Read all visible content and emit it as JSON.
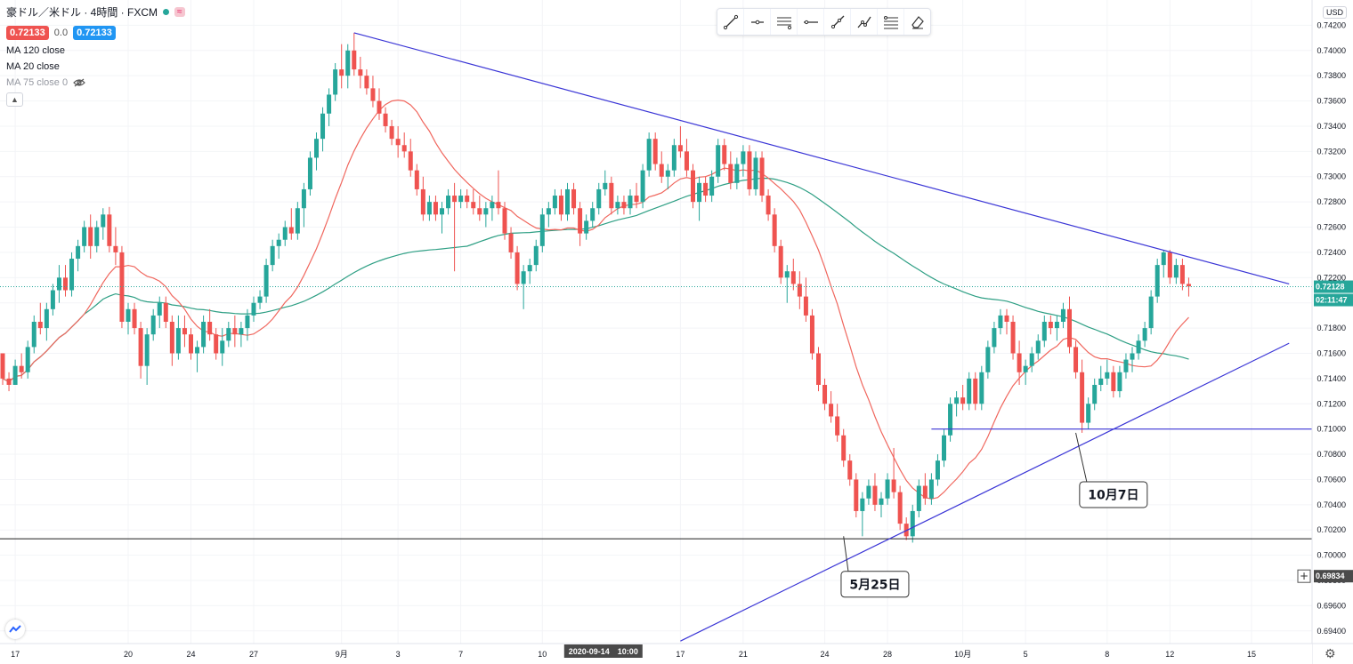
{
  "header": {
    "symbol_title": "豪ドル／米ドル · 4時間 · FXCM",
    "sell_price": "0.72133",
    "spread": "0.0",
    "buy_price": "0.72133",
    "indicators": [
      "MA 120 close",
      "MA 20 close",
      "MA 75 close 0"
    ],
    "collapse_icon": "chevron-up-icon"
  },
  "toolbar_icons": [
    "trend-line-icon",
    "horizontal-ray-icon",
    "parallel-channel-icon",
    "horizontal-line-icon",
    "ray-icon",
    "path-icon",
    "fib-retracement-icon",
    "eraser-icon"
  ],
  "currency_button": "USD",
  "settings_icon": "gear-icon",
  "colors": {
    "up": "#26a69a",
    "down": "#ef5350",
    "ma_fast": "#f0675e",
    "ma_slow": "#2e9f84",
    "trendline": "#3a35d6",
    "support_line": "#1e1e1e"
  },
  "chart_data": {
    "type": "candlestick",
    "symbol": "AUD/USD",
    "timeframe": "4H",
    "ylim": [
      0.693,
      0.744
    ],
    "y_ticks": [
      "0.74200",
      "0.74000",
      "0.73800",
      "0.73600",
      "0.73400",
      "0.73200",
      "0.73000",
      "0.72800",
      "0.72600",
      "0.72400",
      "0.72200",
      "0.72000",
      "0.71800",
      "0.71600",
      "0.71400",
      "0.71200",
      "0.71000",
      "0.70800",
      "0.70600",
      "0.70400",
      "0.70200",
      "0.70000",
      "0.69800",
      "0.69600",
      "0.69400"
    ],
    "x_ticks": [
      {
        "label": "17",
        "i": 2
      },
      {
        "label": "20",
        "i": 20
      },
      {
        "label": "24",
        "i": 30
      },
      {
        "label": "27",
        "i": 40
      },
      {
        "label": "9月",
        "i": 54
      },
      {
        "label": "3",
        "i": 63
      },
      {
        "label": "7",
        "i": 73
      },
      {
        "label": "10",
        "i": 86
      },
      {
        "label": "17",
        "i": 108
      },
      {
        "label": "21",
        "i": 118
      },
      {
        "label": "24",
        "i": 131
      },
      {
        "label": "28",
        "i": 141
      },
      {
        "label": "10月",
        "i": 153
      },
      {
        "label": "5",
        "i": 163
      },
      {
        "label": "8",
        "i": 176
      },
      {
        "label": "12",
        "i": 186
      },
      {
        "label": "15",
        "i": 199
      }
    ],
    "crosshair_x_label": "2020-09-14　10:00",
    "crosshair_i": 96,
    "last_price_label": "0.72128",
    "countdown_label": "02:11:47",
    "cursor_price_label": "0.69834",
    "support_level": 0.7013,
    "horizontal_level": {
      "price": 0.71,
      "from_i": 148
    },
    "trendlines": [
      {
        "name": "resistance",
        "from": [
          56,
          0.7414
        ],
        "to": [
          205,
          0.7215
        ]
      },
      {
        "name": "support",
        "from": [
          108,
          0.6932
        ],
        "to": [
          205,
          0.7168
        ]
      }
    ],
    "annotations": [
      {
        "text": "5月25日",
        "target_i": 134,
        "target_price": 0.7015,
        "label_i": 139,
        "label_price": 0.6977
      },
      {
        "text": "10月7日",
        "target_i": 171,
        "target_price": 0.7097,
        "label_i": 177,
        "label_price": 0.7048
      }
    ],
    "ohlc": [
      [
        0.716,
        0.716,
        0.7135,
        0.714
      ],
      [
        0.714,
        0.7145,
        0.713,
        0.7135
      ],
      [
        0.7135,
        0.7155,
        0.7135,
        0.715
      ],
      [
        0.715,
        0.716,
        0.714,
        0.7145
      ],
      [
        0.7145,
        0.717,
        0.714,
        0.7165
      ],
      [
        0.7165,
        0.719,
        0.716,
        0.7185
      ],
      [
        0.7185,
        0.72,
        0.7175,
        0.718
      ],
      [
        0.718,
        0.72,
        0.717,
        0.7195
      ],
      [
        0.7195,
        0.7215,
        0.719,
        0.721
      ],
      [
        0.721,
        0.723,
        0.72,
        0.722
      ],
      [
        0.722,
        0.723,
        0.7205,
        0.721
      ],
      [
        0.721,
        0.724,
        0.7205,
        0.7235
      ],
      [
        0.7235,
        0.725,
        0.7225,
        0.7245
      ],
      [
        0.7245,
        0.7265,
        0.724,
        0.726
      ],
      [
        0.726,
        0.727,
        0.7235,
        0.7245
      ],
      [
        0.7245,
        0.7265,
        0.724,
        0.726
      ],
      [
        0.726,
        0.7275,
        0.725,
        0.727
      ],
      [
        0.727,
        0.7276,
        0.724,
        0.7245
      ],
      [
        0.7245,
        0.726,
        0.723,
        0.724
      ],
      [
        0.724,
        0.7245,
        0.718,
        0.7185
      ],
      [
        0.7185,
        0.72,
        0.7175,
        0.7195
      ],
      [
        0.7195,
        0.72,
        0.7175,
        0.718
      ],
      [
        0.718,
        0.7185,
        0.714,
        0.715
      ],
      [
        0.715,
        0.718,
        0.7135,
        0.7175
      ],
      [
        0.7175,
        0.7195,
        0.717,
        0.719
      ],
      [
        0.719,
        0.7205,
        0.718,
        0.72
      ],
      [
        0.72,
        0.7205,
        0.718,
        0.7185
      ],
      [
        0.7185,
        0.719,
        0.715,
        0.716
      ],
      [
        0.716,
        0.719,
        0.7155,
        0.718
      ],
      [
        0.718,
        0.719,
        0.7165,
        0.7175
      ],
      [
        0.7175,
        0.718,
        0.7155,
        0.716
      ],
      [
        0.716,
        0.717,
        0.7145,
        0.7165
      ],
      [
        0.7165,
        0.719,
        0.716,
        0.7185
      ],
      [
        0.7185,
        0.7195,
        0.717,
        0.7175
      ],
      [
        0.7175,
        0.718,
        0.7155,
        0.716
      ],
      [
        0.716,
        0.718,
        0.715,
        0.717
      ],
      [
        0.717,
        0.7185,
        0.7165,
        0.718
      ],
      [
        0.718,
        0.719,
        0.7165,
        0.7175
      ],
      [
        0.7175,
        0.7185,
        0.7165,
        0.718
      ],
      [
        0.718,
        0.7195,
        0.717,
        0.719
      ],
      [
        0.719,
        0.7205,
        0.7185,
        0.72
      ],
      [
        0.72,
        0.721,
        0.7195,
        0.7205
      ],
      [
        0.7205,
        0.7235,
        0.72,
        0.723
      ],
      [
        0.723,
        0.725,
        0.7225,
        0.7245
      ],
      [
        0.7245,
        0.7255,
        0.7235,
        0.725
      ],
      [
        0.725,
        0.7265,
        0.7245,
        0.726
      ],
      [
        0.726,
        0.7275,
        0.725,
        0.7255
      ],
      [
        0.7255,
        0.728,
        0.725,
        0.7275
      ],
      [
        0.7275,
        0.7295,
        0.726,
        0.729
      ],
      [
        0.729,
        0.732,
        0.7285,
        0.7315
      ],
      [
        0.7315,
        0.7335,
        0.7305,
        0.733
      ],
      [
        0.733,
        0.7355,
        0.732,
        0.735
      ],
      [
        0.735,
        0.737,
        0.734,
        0.7365
      ],
      [
        0.7365,
        0.739,
        0.736,
        0.7385
      ],
      [
        0.7385,
        0.7405,
        0.737,
        0.738
      ],
      [
        0.738,
        0.7405,
        0.737,
        0.74
      ],
      [
        0.74,
        0.7414,
        0.738,
        0.7385
      ],
      [
        0.7385,
        0.7395,
        0.737,
        0.738
      ],
      [
        0.738,
        0.7385,
        0.7365,
        0.737
      ],
      [
        0.737,
        0.738,
        0.7355,
        0.736
      ],
      [
        0.736,
        0.737,
        0.7345,
        0.735
      ],
      [
        0.735,
        0.7355,
        0.7335,
        0.734
      ],
      [
        0.734,
        0.7345,
        0.7325,
        0.733
      ],
      [
        0.733,
        0.734,
        0.7315,
        0.7325
      ],
      [
        0.7325,
        0.7335,
        0.7315,
        0.732
      ],
      [
        0.732,
        0.733,
        0.73,
        0.7305
      ],
      [
        0.7305,
        0.731,
        0.7285,
        0.729
      ],
      [
        0.729,
        0.73,
        0.7265,
        0.727
      ],
      [
        0.727,
        0.7285,
        0.7265,
        0.728
      ],
      [
        0.728,
        0.7285,
        0.7265,
        0.727
      ],
      [
        0.727,
        0.728,
        0.7255,
        0.7275
      ],
      [
        0.7275,
        0.729,
        0.727,
        0.7285
      ],
      [
        0.7285,
        0.7295,
        0.7225,
        0.728
      ],
      [
        0.728,
        0.729,
        0.7275,
        0.7285
      ],
      [
        0.7285,
        0.729,
        0.7275,
        0.728
      ],
      [
        0.728,
        0.729,
        0.727,
        0.7275
      ],
      [
        0.7275,
        0.7285,
        0.7265,
        0.727
      ],
      [
        0.727,
        0.728,
        0.726,
        0.7275
      ],
      [
        0.7275,
        0.7285,
        0.7265,
        0.728
      ],
      [
        0.728,
        0.7305,
        0.727,
        0.7275
      ],
      [
        0.7275,
        0.728,
        0.725,
        0.7255
      ],
      [
        0.7255,
        0.726,
        0.7235,
        0.724
      ],
      [
        0.724,
        0.7245,
        0.721,
        0.7215
      ],
      [
        0.7215,
        0.723,
        0.7195,
        0.7225
      ],
      [
        0.7225,
        0.7235,
        0.7215,
        0.723
      ],
      [
        0.723,
        0.725,
        0.7225,
        0.7245
      ],
      [
        0.7245,
        0.7275,
        0.724,
        0.727
      ],
      [
        0.727,
        0.728,
        0.726,
        0.7275
      ],
      [
        0.7275,
        0.729,
        0.727,
        0.7285
      ],
      [
        0.7285,
        0.729,
        0.7265,
        0.727
      ],
      [
        0.727,
        0.7295,
        0.7265,
        0.729
      ],
      [
        0.729,
        0.7295,
        0.727,
        0.7275
      ],
      [
        0.7275,
        0.728,
        0.7245,
        0.7255
      ],
      [
        0.7255,
        0.727,
        0.725,
        0.7265
      ],
      [
        0.7265,
        0.728,
        0.726,
        0.7275
      ],
      [
        0.7275,
        0.7295,
        0.727,
        0.729
      ],
      [
        0.729,
        0.7305,
        0.7285,
        0.7295
      ],
      [
        0.7295,
        0.73,
        0.727,
        0.7275
      ],
      [
        0.7275,
        0.7285,
        0.727,
        0.728
      ],
      [
        0.728,
        0.7285,
        0.727,
        0.7275
      ],
      [
        0.7275,
        0.729,
        0.727,
        0.7285
      ],
      [
        0.7285,
        0.7295,
        0.7275,
        0.728
      ],
      [
        0.728,
        0.731,
        0.7275,
        0.7305
      ],
      [
        0.7305,
        0.7335,
        0.73,
        0.733
      ],
      [
        0.733,
        0.7335,
        0.7305,
        0.731
      ],
      [
        0.731,
        0.732,
        0.7295,
        0.73
      ],
      [
        0.73,
        0.731,
        0.729,
        0.7305
      ],
      [
        0.7305,
        0.733,
        0.73,
        0.7325
      ],
      [
        0.7325,
        0.734,
        0.7315,
        0.732
      ],
      [
        0.732,
        0.733,
        0.73,
        0.7305
      ],
      [
        0.7305,
        0.731,
        0.7275,
        0.728
      ],
      [
        0.728,
        0.73,
        0.7265,
        0.7295
      ],
      [
        0.7295,
        0.73,
        0.728,
        0.7285
      ],
      [
        0.7285,
        0.7305,
        0.728,
        0.73
      ],
      [
        0.73,
        0.733,
        0.7295,
        0.7325
      ],
      [
        0.7325,
        0.733,
        0.7305,
        0.731
      ],
      [
        0.731,
        0.732,
        0.729,
        0.7295
      ],
      [
        0.7295,
        0.7315,
        0.729,
        0.731
      ],
      [
        0.731,
        0.7325,
        0.73,
        0.732
      ],
      [
        0.732,
        0.7325,
        0.7285,
        0.729
      ],
      [
        0.729,
        0.732,
        0.7285,
        0.7315
      ],
      [
        0.7315,
        0.732,
        0.728,
        0.7285
      ],
      [
        0.7285,
        0.729,
        0.7265,
        0.727
      ],
      [
        0.727,
        0.7275,
        0.724,
        0.7245
      ],
      [
        0.7245,
        0.725,
        0.7215,
        0.722
      ],
      [
        0.722,
        0.723,
        0.72,
        0.7225
      ],
      [
        0.7225,
        0.7235,
        0.721,
        0.7215
      ],
      [
        0.7215,
        0.7225,
        0.7195,
        0.7205
      ],
      [
        0.7205,
        0.722,
        0.7185,
        0.719
      ],
      [
        0.719,
        0.7195,
        0.7155,
        0.716
      ],
      [
        0.716,
        0.7165,
        0.713,
        0.7135
      ],
      [
        0.7135,
        0.714,
        0.7115,
        0.712
      ],
      [
        0.712,
        0.713,
        0.7105,
        0.711
      ],
      [
        0.711,
        0.712,
        0.709,
        0.7095
      ],
      [
        0.7095,
        0.71,
        0.707,
        0.7075
      ],
      [
        0.7075,
        0.708,
        0.7055,
        0.706
      ],
      [
        0.706,
        0.7065,
        0.703,
        0.7035
      ],
      [
        0.7035,
        0.705,
        0.7015,
        0.7045
      ],
      [
        0.7045,
        0.706,
        0.704,
        0.7055
      ],
      [
        0.7055,
        0.7065,
        0.7035,
        0.704
      ],
      [
        0.704,
        0.705,
        0.703,
        0.7045
      ],
      [
        0.7045,
        0.7065,
        0.704,
        0.706
      ],
      [
        0.706,
        0.7085,
        0.7045,
        0.705
      ],
      [
        0.705,
        0.7055,
        0.702,
        0.7025
      ],
      [
        0.7025,
        0.703,
        0.7012,
        0.7015
      ],
      [
        0.7015,
        0.704,
        0.701,
        0.7035
      ],
      [
        0.7035,
        0.706,
        0.703,
        0.7055
      ],
      [
        0.7055,
        0.7065,
        0.704,
        0.7045
      ],
      [
        0.7045,
        0.7065,
        0.704,
        0.706
      ],
      [
        0.706,
        0.708,
        0.7055,
        0.7075
      ],
      [
        0.7075,
        0.71,
        0.707,
        0.7095
      ],
      [
        0.7095,
        0.7125,
        0.709,
        0.712
      ],
      [
        0.712,
        0.713,
        0.711,
        0.7125
      ],
      [
        0.7125,
        0.7135,
        0.7115,
        0.712
      ],
      [
        0.712,
        0.7145,
        0.7115,
        0.714
      ],
      [
        0.714,
        0.7145,
        0.7115,
        0.712
      ],
      [
        0.712,
        0.715,
        0.7115,
        0.7145
      ],
      [
        0.7145,
        0.717,
        0.714,
        0.7165
      ],
      [
        0.7165,
        0.7185,
        0.716,
        0.718
      ],
      [
        0.718,
        0.7195,
        0.7175,
        0.719
      ],
      [
        0.719,
        0.7195,
        0.7175,
        0.7185
      ],
      [
        0.7185,
        0.719,
        0.7155,
        0.716
      ],
      [
        0.716,
        0.717,
        0.7135,
        0.7145
      ],
      [
        0.7145,
        0.7155,
        0.7135,
        0.715
      ],
      [
        0.715,
        0.7165,
        0.7145,
        0.716
      ],
      [
        0.716,
        0.7175,
        0.7155,
        0.717
      ],
      [
        0.717,
        0.719,
        0.7165,
        0.7185
      ],
      [
        0.7185,
        0.719,
        0.7175,
        0.718
      ],
      [
        0.718,
        0.719,
        0.717,
        0.7185
      ],
      [
        0.7185,
        0.72,
        0.718,
        0.7195
      ],
      [
        0.7195,
        0.7205,
        0.716,
        0.7165
      ],
      [
        0.7165,
        0.717,
        0.714,
        0.7145
      ],
      [
        0.7145,
        0.7155,
        0.7097,
        0.7105
      ],
      [
        0.7105,
        0.7125,
        0.71,
        0.712
      ],
      [
        0.712,
        0.714,
        0.7115,
        0.7135
      ],
      [
        0.7135,
        0.715,
        0.713,
        0.714
      ],
      [
        0.714,
        0.7155,
        0.7135,
        0.7145
      ],
      [
        0.7145,
        0.715,
        0.7125,
        0.713
      ],
      [
        0.713,
        0.715,
        0.7125,
        0.7145
      ],
      [
        0.7145,
        0.716,
        0.714,
        0.7155
      ],
      [
        0.7155,
        0.7165,
        0.7145,
        0.716
      ],
      [
        0.716,
        0.7175,
        0.7155,
        0.717
      ],
      [
        0.717,
        0.7185,
        0.7165,
        0.718
      ],
      [
        0.718,
        0.721,
        0.7175,
        0.7205
      ],
      [
        0.7205,
        0.7235,
        0.72,
        0.723
      ],
      [
        0.723,
        0.7242,
        0.722,
        0.724
      ],
      [
        0.724,
        0.7242,
        0.7215,
        0.722
      ],
      [
        0.722,
        0.7235,
        0.7215,
        0.723
      ],
      [
        0.723,
        0.7235,
        0.721,
        0.7215
      ],
      [
        0.7215,
        0.722,
        0.7205,
        0.7213
      ]
    ]
  }
}
